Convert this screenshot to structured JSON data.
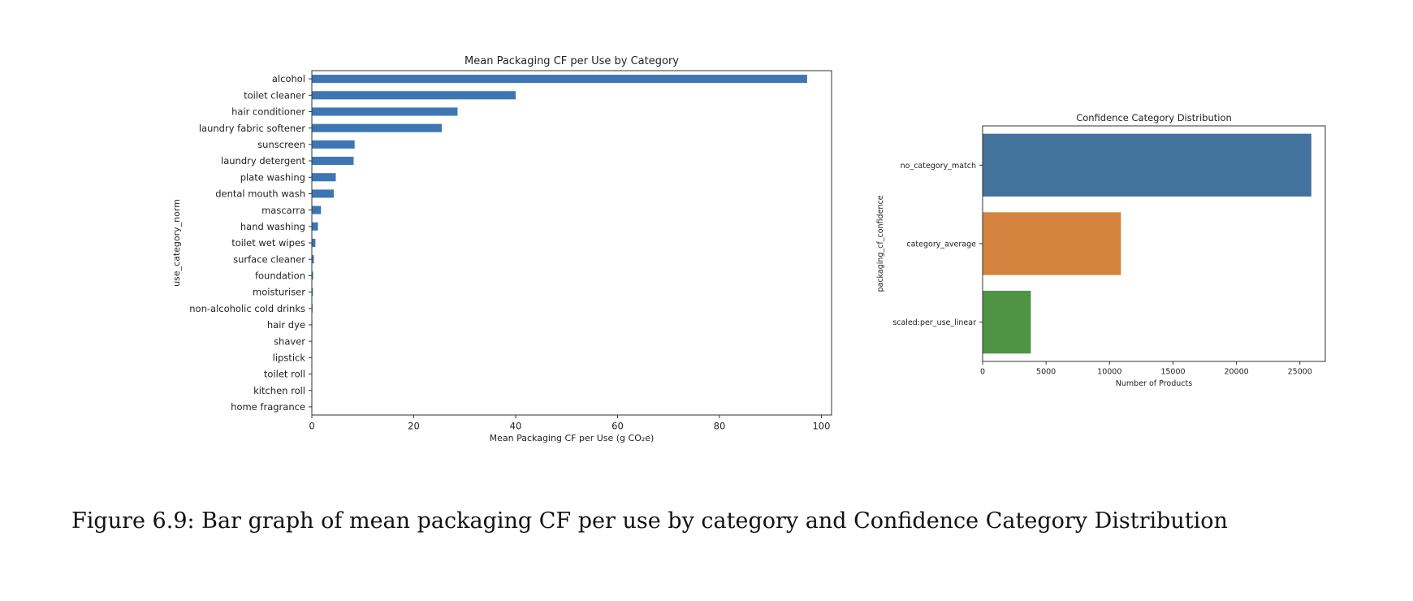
{
  "caption": "Figure 6.9: Bar graph of mean packaging CF per use by category and Confidence Category Distribution",
  "chart_data": [
    {
      "type": "bar",
      "orientation": "horizontal",
      "title": "Mean Packaging CF per Use by Category",
      "xlabel": "Mean Packaging CF per Use (g CO₂e)",
      "ylabel": "use_category_norm",
      "xlim": [
        0,
        102
      ],
      "xticks": [
        0,
        20,
        40,
        60,
        80,
        100
      ],
      "grid": false,
      "color": "#3e76b3",
      "categories": [
        "alcohol",
        "toilet cleaner",
        "hair conditioner",
        "laundry fabric softener",
        "sunscreen",
        "laundry detergent",
        "plate washing",
        "dental mouth wash",
        "mascarra",
        "hand washing",
        "toilet wet wipes",
        "surface cleaner",
        "foundation",
        "moisturiser",
        "non-alcoholic cold drinks",
        "hair dye",
        "shaver",
        "lipstick",
        "toilet roll",
        "kitchen roll",
        "home fragrance"
      ],
      "values": [
        97.2,
        40.0,
        28.6,
        25.5,
        8.4,
        8.2,
        4.7,
        4.3,
        1.8,
        1.2,
        0.7,
        0.4,
        0.25,
        0.2,
        0.15,
        0.1,
        0.08,
        0.05,
        0.04,
        0.03,
        0.02
      ]
    },
    {
      "type": "bar",
      "orientation": "horizontal",
      "title": "Confidence Category Distribution",
      "xlabel": "Number of Products",
      "ylabel": "packaging_cf_confidence",
      "xlim": [
        0,
        27000
      ],
      "xticks": [
        0,
        5000,
        10000,
        15000,
        20000,
        25000
      ],
      "grid": false,
      "categories": [
        "no_category_match",
        "category_average",
        "scaled:per_use_linear"
      ],
      "values": [
        25900,
        10900,
        3800
      ],
      "colors": [
        "#43729c",
        "#d4843f",
        "#4f9445"
      ]
    }
  ]
}
